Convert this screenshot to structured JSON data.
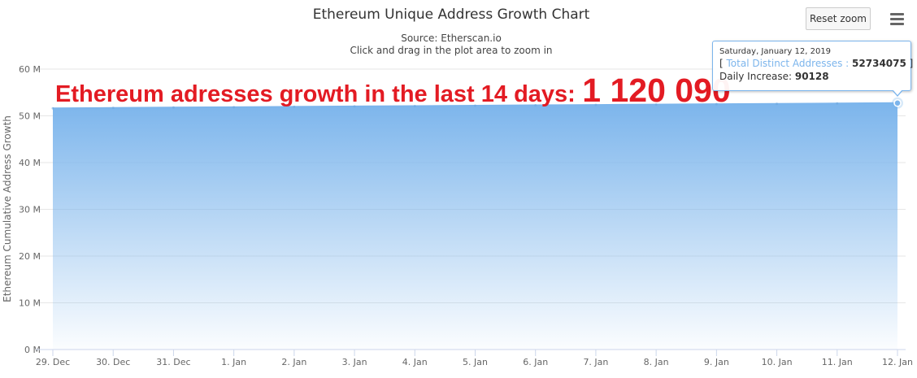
{
  "header": {
    "title": "Ethereum Unique Address Growth Chart",
    "subtitle_source": "Source: Etherscan.io",
    "subtitle_hint": "Click and drag in the plot area to zoom in"
  },
  "toolbar": {
    "reset_zoom_label": "Reset zoom",
    "menu_icon": "hamburger-menu-icon"
  },
  "overlay": {
    "text": "Ethereum adresses growth in the last 14 days:",
    "number": "1 120 090",
    "color": "#e31b23"
  },
  "tooltip": {
    "date": "Saturday, January 12, 2019",
    "series_open": "[ ",
    "series_label": "Total Distinct Addresses :",
    "series_value": "52734075",
    "series_close": " ]",
    "increase_label": "Daily Increase:",
    "increase_value": "90128"
  },
  "chart_data": {
    "type": "area",
    "title": "Ethereum Unique Address Growth Chart",
    "subtitle": "Source: Etherscan.io",
    "ylabel": "Ethereum Cumulative Address Growth",
    "xlabel": "",
    "ylim": [
      0,
      60000000
    ],
    "y_ticks": [
      "0 M",
      "10 M",
      "20 M",
      "30 M",
      "40 M",
      "50 M",
      "60 M"
    ],
    "categories": [
      "29. Dec",
      "30. Dec",
      "31. Dec",
      "1. Jan",
      "2. Jan",
      "3. Jan",
      "4. Jan",
      "5. Jan",
      "6. Jan",
      "7. Jan",
      "8. Jan",
      "9. Jan",
      "10. Jan",
      "11. Jan",
      "12. Jan"
    ],
    "series": [
      {
        "name": "Total Distinct Addresses",
        "values": [
          51613985,
          51694000,
          51774000,
          51854000,
          51934000,
          52014000,
          52094000,
          52174000,
          52254000,
          52334000,
          52414000,
          52494000,
          52574000,
          52643947,
          52734075
        ]
      }
    ],
    "grid": true,
    "colors": {
      "line": "#7cb5ec",
      "fill_top": "#7cb5ec",
      "grid": "#e6e6e6"
    }
  }
}
